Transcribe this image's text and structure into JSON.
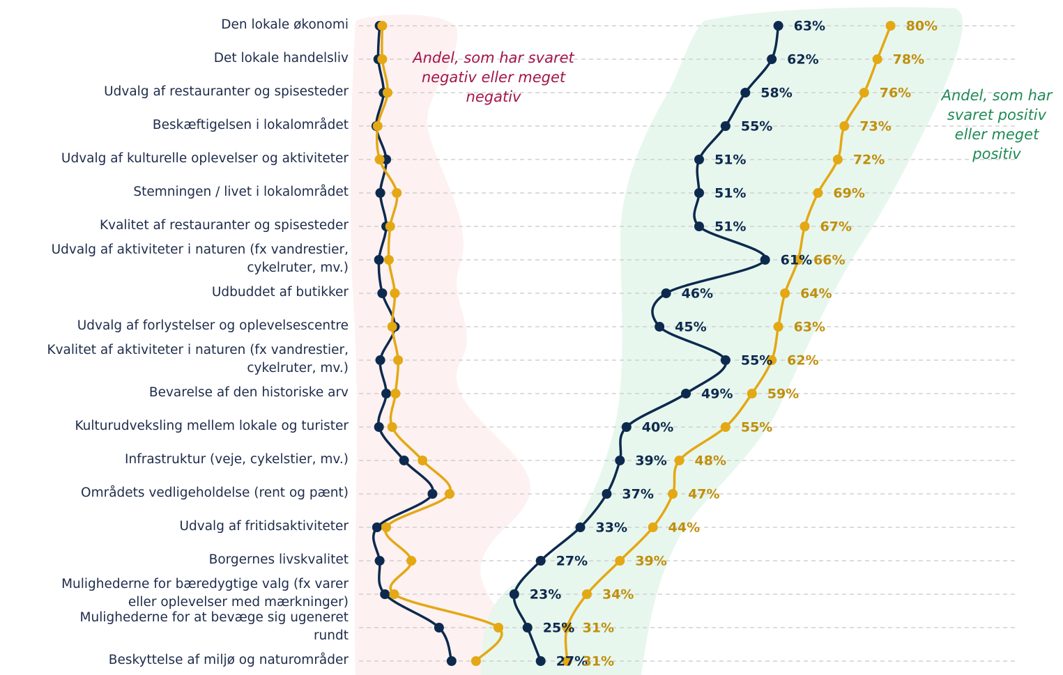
{
  "chart_data": {
    "type": "line",
    "categories": [
      "Den lokale økonomi",
      "Det lokale handelsliv",
      "Udvalg af restauranter og spisesteder",
      "Beskæftigelsen i lokalområdet",
      "Udvalg af kulturelle oplevelser og aktiviteter",
      "Stemningen / livet i lokalområdet",
      "Kvalitet af restauranter og spisesteder",
      "Udvalg af aktiviteter i naturen (fx vandrestier,\ncykelruter, mv.)",
      "Udbuddet af butikker",
      "Udvalg af forlystelser og oplevelsescentre",
      "Kvalitet af aktiviteter i naturen (fx vandrestier,\ncykelruter, mv.)",
      "Bevarelse af den historiske arv",
      "Kulturudveksling mellem lokale og turister",
      "Infrastruktur (veje, cykelstier, mv.)",
      "Områdets vedligeholdelse (rent og pænt)",
      "Udvalg af fritidsaktiviteter",
      "Borgernes livskvalitet",
      "Mulighederne for bæredygtige valg (fx varer\neller oplevelser med mærkninger)",
      "Mulighederne for at bevæge sig ugeneret\nrundt",
      "Beskyttelse af miljø og naturområder"
    ],
    "annotation_negative": [
      "Andel, som har svaret",
      "negativ eller meget",
      "negativ"
    ],
    "annotation_positive": [
      "Andel, som har",
      "svaret positiv",
      "eller meget",
      "positiv"
    ],
    "xlim": [
      0,
      100
    ],
    "series": [
      {
        "color": "#0d2a4e",
        "values": [
          2.6,
          2.4,
          3.2,
          2.1,
          3.6,
          2.7,
          3.6,
          2.5,
          3.0,
          4.9,
          2.7,
          3.6,
          2.5,
          6.3,
          10.6,
          2.2,
          2.6,
          3.4,
          11.6,
          13.5
        ]
      },
      {
        "color": "#e3a814",
        "values": [
          3.0,
          3.0,
          3.8,
          2.3,
          2.6,
          5.2,
          4.2,
          4.0,
          4.9,
          4.5,
          5.4,
          5.0,
          4.5,
          9.1,
          13.2,
          3.6,
          7.4,
          4.8,
          20.6,
          17.2
        ]
      },
      {
        "color": "#0d2a4e",
        "label_color": "#0d2a4e",
        "values": [
          63,
          62,
          58,
          55,
          51,
          51,
          51,
          61,
          46,
          45,
          55,
          49,
          40,
          39,
          37,
          33,
          27,
          23,
          25,
          27
        ],
        "value_labels": [
          "63%",
          "62%",
          "58%",
          "55%",
          "51%",
          "51%",
          "51%",
          "61%",
          "46%",
          "45%",
          "55%",
          "49%",
          "40%",
          "39%",
          "37%",
          "33%",
          "27%",
          "23%",
          "25%",
          "27%"
        ]
      },
      {
        "color": "#e3a814",
        "label_color": "#c08f0c",
        "values": [
          80,
          78,
          76,
          73,
          72,
          69,
          67,
          66,
          64,
          63,
          62,
          59,
          55,
          48,
          47,
          44,
          39,
          34,
          31,
          31
        ],
        "value_labels": [
          "80%",
          "78%",
          "76%",
          "73%",
          "72%",
          "69%",
          "67%",
          "66%",
          "64%",
          "63%",
          "62%",
          "59%",
          "55%",
          "48%",
          "47%",
          "44%",
          "39%",
          "34%",
          "31%",
          "31%"
        ]
      }
    ]
  }
}
